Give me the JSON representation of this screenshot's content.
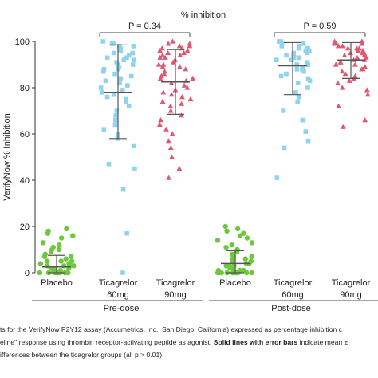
{
  "chart_data": {
    "type": "scatter",
    "title": "% inhibition",
    "ylabel": "VerifyNow % Inhibition",
    "xlabel": "",
    "ylim": [
      0,
      100
    ],
    "yticks": [
      0,
      20,
      40,
      60,
      80,
      100
    ],
    "grid": false,
    "groups": [
      {
        "name": "Pre-dose",
        "categories": [
          {
            "label_line1": "Placebo",
            "label_line2": "",
            "color": "#6ec83c",
            "marker": "circle",
            "mean": 2.5,
            "sd_low": 0,
            "sd_high": 7.5,
            "values": [
              0,
              0,
              0,
              0,
              0,
              0,
              0,
              0,
              0,
              0,
              0,
              1,
              1,
              2,
              2,
              2,
              3,
              3,
              3,
              3,
              4,
              4,
              5,
              5,
              5,
              6,
              7,
              7,
              8,
              9,
              10,
              10,
              11,
              12,
              13,
              15,
              16,
              17,
              18,
              19
            ]
          },
          {
            "label_line1": "Ticagrelor",
            "label_line2": "60mg",
            "color": "#8fd3ee",
            "marker": "square",
            "mean": 78,
            "sd_low": 58,
            "sd_high": 98.5,
            "values": [
              100,
              99,
              99,
              98,
              98,
              97,
              97,
              96,
              96,
              95,
              95,
              94,
              93,
              93,
              92,
              92,
              91,
              90,
              90,
              89,
              88,
              88,
              87,
              86,
              85,
              84,
              83,
              82,
              81,
              80,
              79,
              78,
              77,
              76,
              75,
              74,
              72,
              70,
              68,
              66,
              64,
              62,
              60,
              58,
              55,
              47,
              45,
              36,
              17,
              0
            ]
          },
          {
            "label_line1": "Ticagrelor",
            "label_line2": "90mg",
            "color": "#e2566f",
            "marker": "triangle",
            "mean": 82.5,
            "sd_low": 68.5,
            "sd_high": 96.5,
            "values": [
              100,
              99,
              99,
              98,
              98,
              97,
              97,
              96,
              96,
              95,
              95,
              94,
              94,
              93,
              93,
              92,
              91,
              90,
              90,
              89,
              89,
              88,
              87,
              86,
              85,
              84,
              84,
              83,
              82,
              81,
              80,
              79,
              78,
              77,
              76,
              75,
              74,
              73,
              72,
              70,
              68,
              66,
              64,
              62,
              60,
              57,
              54,
              50,
              45,
              41
            ]
          }
        ]
      },
      {
        "name": "Post-dose",
        "categories": [
          {
            "label_line1": "Placebo",
            "label_line2": "",
            "color": "#6ec83c",
            "marker": "circle",
            "mean": 4,
            "sd_low": 0,
            "sd_high": 9.5,
            "values": [
              0,
              0,
              0,
              0,
              0,
              0,
              0,
              0,
              0,
              0,
              1,
              1,
              1,
              2,
              2,
              3,
              3,
              3,
              4,
              4,
              5,
              5,
              6,
              6,
              7,
              7,
              8,
              9,
              10,
              11,
              12,
              13,
              14,
              15,
              16,
              17,
              18,
              19,
              20
            ]
          },
          {
            "label_line1": "Ticagrelor",
            "label_line2": "60mg",
            "color": "#8fd3ee",
            "marker": "square",
            "mean": 89.5,
            "sd_low": 77,
            "sd_high": 99.5,
            "values": [
              100,
              100,
              99,
              99,
              98,
              98,
              97,
              97,
              96,
              96,
              95,
              95,
              94,
              94,
              93,
              93,
              92,
              92,
              91,
              90,
              90,
              89,
              88,
              88,
              87,
              86,
              85,
              84,
              83,
              82,
              80,
              78,
              76,
              74,
              70,
              66,
              61,
              57,
              54,
              41
            ]
          },
          {
            "label_line1": "Ticagrelor",
            "label_line2": "90mg",
            "color": "#e2566f",
            "marker": "triangle",
            "mean": 92,
            "sd_low": 84,
            "sd_high": 99.5,
            "values": [
              100,
              100,
              99,
              99,
              99,
              98,
              98,
              97,
              97,
              97,
              96,
              96,
              95,
              95,
              95,
              94,
              94,
              93,
              93,
              92,
              92,
              91,
              91,
              90,
              90,
              89,
              88,
              88,
              87,
              86,
              85,
              84,
              83,
              82,
              80,
              79,
              77,
              72,
              66,
              63
            ]
          }
        ]
      }
    ],
    "annotations": [
      {
        "text": "P = 0.34",
        "between": [
          "Pre-dose Ticagrelor 60mg",
          "Pre-dose Ticagrelor 90mg"
        ]
      },
      {
        "text": "P = 0.59",
        "between": [
          "Post-dose Ticagrelor 60mg",
          "Post-dose Ticagrelor 90mg"
        ]
      }
    ]
  },
  "caption": {
    "line1": "ts for the VerifyNow P2Y12 assay (Accumetrics, Inc., San Diego, California) expressed as percentage inhibition c",
    "line2_part1": "eline\" response using thrombin receptor-activating peptide as agonist.",
    "line2_bold": "Solid lines with error bars",
    "line2_part2": "indicate mean ±",
    "line3": "ifferences between the ticagrelor groups (all p > 0.01)."
  }
}
